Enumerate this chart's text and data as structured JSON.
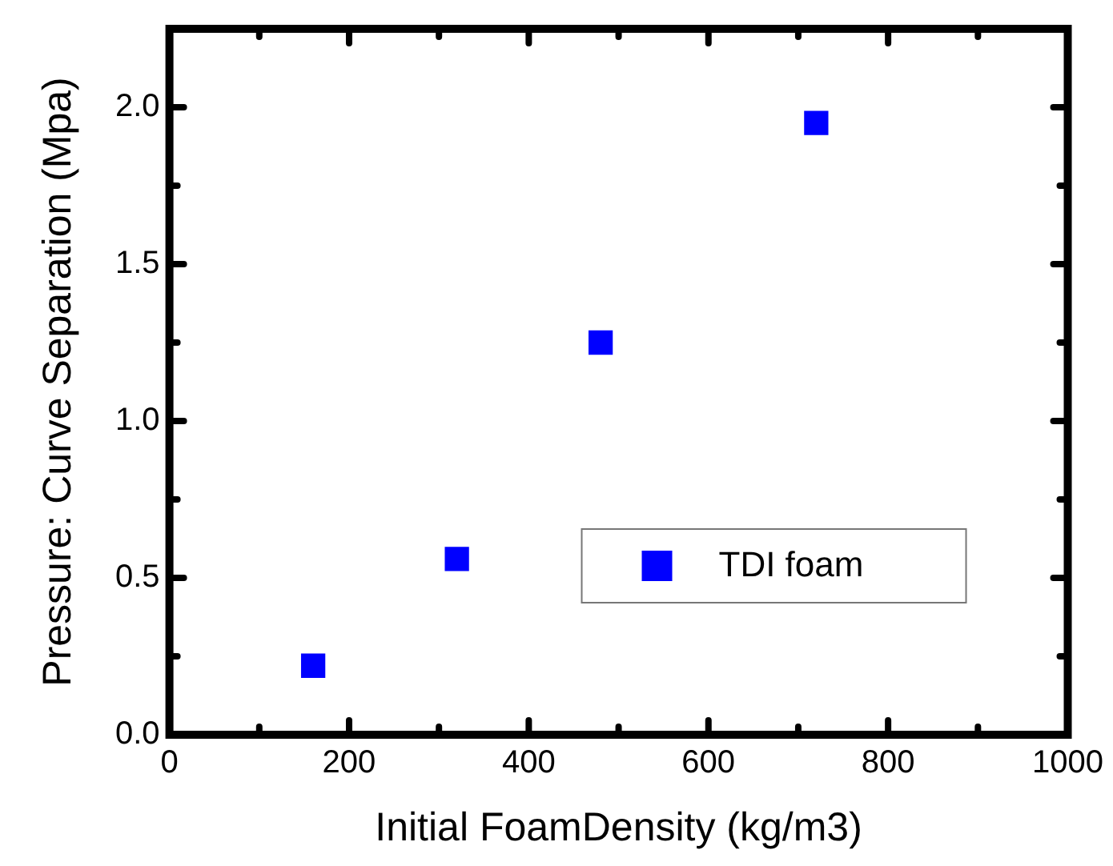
{
  "chart_data": {
    "type": "scatter",
    "xlabel": "Initial FoamDensity (kg/m3)",
    "ylabel": "Pressure: Curve Separation (Mpa)",
    "series": [
      {
        "name": "TDI foam",
        "color": "#0000ff",
        "x": [
          160,
          320,
          480,
          720
        ],
        "values": [
          0.22,
          0.56,
          1.25,
          1.95
        ]
      }
    ],
    "xlim": [
      0,
      1000
    ],
    "xticks": [
      0,
      {
        "value": 100,
        "label": null
      },
      200,
      {
        "value": 300,
        "label": null
      },
      400,
      {
        "value": 500,
        "label": null
      },
      600,
      {
        "value": 700,
        "label": null
      },
      800,
      {
        "value": 900,
        "label": null
      },
      1000
    ],
    "ylim": [
      0,
      2.25
    ],
    "yticks": [
      {
        "value": 0,
        "label": "0.0"
      },
      {
        "value": 0.25,
        "label": null
      },
      {
        "value": 0.5,
        "label": "0.5"
      },
      {
        "value": 0.75,
        "label": null
      },
      {
        "value": 1,
        "label": "1.0"
      },
      {
        "value": 1.25,
        "label": null
      },
      {
        "value": 1.5,
        "label": "1.5"
      },
      {
        "value": 1.75,
        "label": null
      },
      {
        "value": 2,
        "label": "2.0"
      }
    ],
    "marker": "square",
    "legend": "bottom right",
    "grid": false
  }
}
